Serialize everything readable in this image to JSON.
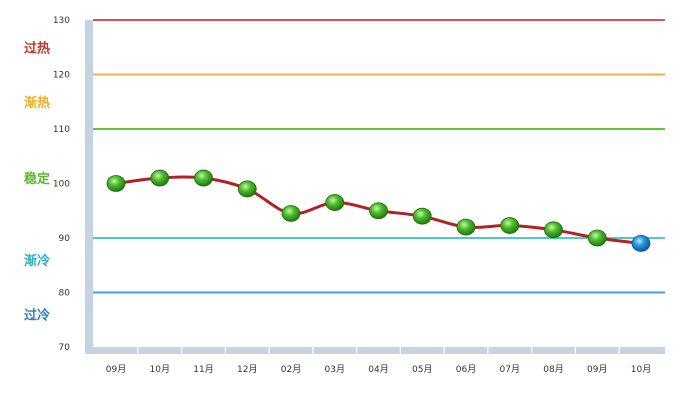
{
  "chart_data": {
    "type": "line",
    "title": "",
    "xlabel": "",
    "ylabel": "",
    "categories": [
      "09月",
      "10月",
      "11月",
      "12月",
      "02月",
      "03月",
      "04月",
      "05月",
      "06月",
      "07月",
      "08月",
      "09月",
      "10月"
    ],
    "values": [
      100,
      101,
      101,
      99,
      94.5,
      96.5,
      95,
      94,
      92,
      92.3,
      91.5,
      90,
      89
    ],
    "ylim": [
      70,
      130
    ],
    "yticks": [
      "70",
      "80",
      "90",
      "100",
      "110",
      "120",
      "130"
    ],
    "grid": false,
    "legend": "none",
    "line_color": "#b22222",
    "point_color": "#3fae1f",
    "last_point_color": "#1e90e0",
    "thresholds": [
      {
        "value": 130,
        "color": "#d9534f"
      },
      {
        "value": 120,
        "color": "#f0ad4e"
      },
      {
        "value": 110,
        "color": "#5cc93a"
      },
      {
        "value": 90,
        "color": "#4fc8c8"
      },
      {
        "value": 80,
        "color": "#4a9fd8"
      }
    ],
    "zones": [
      {
        "label": "过热",
        "value": 125,
        "color": "#c0392b"
      },
      {
        "label": "渐热",
        "value": 115,
        "color": "#f0b020"
      },
      {
        "label": "稳定",
        "value": 101,
        "color": "#5cb82e"
      },
      {
        "label": "渐冷",
        "value": 86,
        "color": "#2ab0c8"
      },
      {
        "label": "过冷",
        "value": 76,
        "color": "#2e7fc0"
      }
    ]
  }
}
